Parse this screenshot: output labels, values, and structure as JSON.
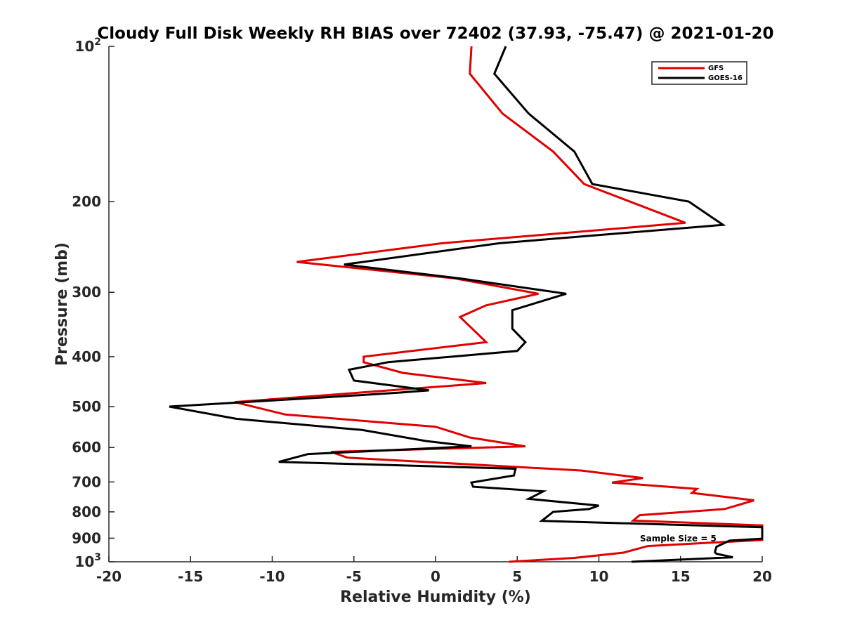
{
  "chart_data": {
    "type": "line",
    "title": "Cloudy Full Disk Weekly RH BIAS over 72402 (37.93, -75.47) @ 2021-01-20",
    "xlabel": "Relative Humidity (%)",
    "ylabel": "Pressure (mb)",
    "xlim": [
      -20,
      20
    ],
    "ylim": [
      1000,
      100
    ],
    "y_scale": "log",
    "y_reversed": true,
    "grid": false,
    "legend_position": "top-right",
    "x_ticks": [
      -20,
      -15,
      -10,
      -5,
      0,
      5,
      10,
      15,
      20
    ],
    "x_tick_labels": [
      "-20",
      "-15",
      "-10",
      "-5",
      "0",
      "5",
      "10",
      "15",
      "20"
    ],
    "y_ticks": [
      100,
      200,
      300,
      400,
      500,
      600,
      700,
      800,
      900,
      1000
    ],
    "y_tick_labels": [
      "10^2",
      "200",
      "300",
      "400",
      "500",
      "600",
      "700",
      "800",
      "900",
      "10^3"
    ],
    "annotation": "Sample Size = 5",
    "series": [
      {
        "name": "GFS",
        "color": "#e00000",
        "x": [
          2.2,
          2.1,
          4.1,
          7.2,
          9.1,
          15.3,
          0.4,
          -8.5,
          1.2,
          6.3,
          3.1,
          1.5,
          3.1,
          -4.4,
          -4.4,
          -2.0,
          3.1,
          -12.3,
          -9.2,
          0.0,
          2.1,
          5.5,
          -6.4,
          -5.4,
          8.9,
          12.7,
          10.8,
          16.0,
          15.7,
          19.5,
          17.7,
          12.5,
          12.1,
          20.0,
          20.0,
          13.0,
          11.5,
          8.5,
          4.5
        ],
        "y": [
          100,
          113,
          135,
          160,
          185,
          220,
          241,
          262,
          282,
          302,
          318,
          335,
          375,
          400,
          410,
          430,
          450,
          490,
          518,
          547,
          574,
          597,
          612,
          628,
          665,
          688,
          702,
          722,
          735,
          760,
          790,
          812,
          832,
          850,
          907,
          932,
          960,
          983,
          1000
        ]
      },
      {
        "name": "GOES-16",
        "color": "#000000",
        "x": [
          4.3,
          3.6,
          5.7,
          8.5,
          9.6,
          15.5,
          17.6,
          3.9,
          -5.6,
          1.5,
          8.0,
          4.7,
          4.7,
          5.5,
          5.0,
          -2.9,
          -5.3,
          -5.0,
          -0.4,
          -2.3,
          -6.9,
          -16.3,
          -12.2,
          -4.5,
          -0.6,
          2.2,
          -7.8,
          -9.6,
          4.9,
          4.8,
          2.2,
          2.3,
          6.6,
          5.7,
          10.0,
          9.4,
          7.2,
          6.5,
          20.0,
          20.0,
          18.0,
          17.2,
          17.1,
          17.2,
          18.2,
          12.0
        ],
        "y": [
          100,
          113,
          135,
          160,
          185,
          200,
          222,
          241,
          265,
          282,
          302,
          325,
          353,
          375,
          390,
          410,
          424,
          445,
          465,
          470,
          480,
          500,
          528,
          555,
          583,
          597,
          618,
          640,
          660,
          680,
          702,
          715,
          730,
          755,
          778,
          790,
          800,
          833,
          857,
          902,
          910,
          935,
          958,
          965,
          980,
          1000
        ]
      }
    ]
  }
}
